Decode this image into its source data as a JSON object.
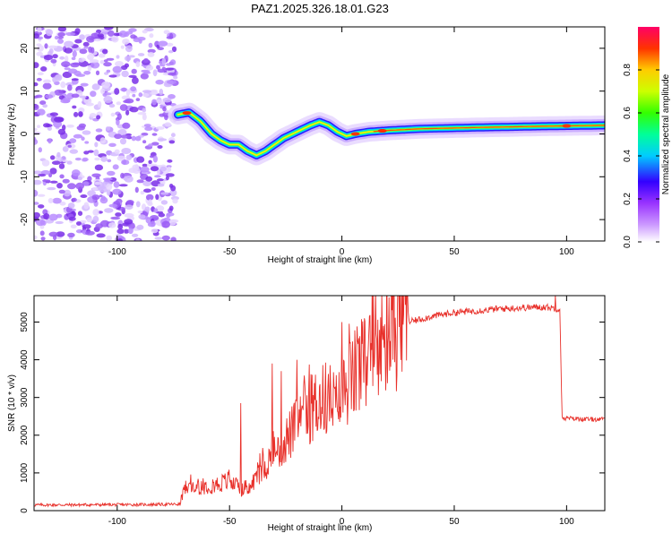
{
  "page": {
    "title": "PAZ1.2025.326.18.01.G23"
  },
  "chart_data": [
    {
      "type": "heatmap",
      "name": "spectrogram",
      "xlabel": "Height of straight line (km)",
      "ylabel": "Frequency (Hz)",
      "xlim": [
        -137,
        117
      ],
      "ylim": [
        -25,
        25
      ],
      "xticks": [
        -100,
        -50,
        0,
        50,
        100
      ],
      "yticks": [
        -20,
        -10,
        0,
        10,
        20
      ],
      "noise_region": {
        "x_range": [
          -137,
          -74
        ],
        "y_range": [
          -25,
          25
        ]
      },
      "frequency_trace": {
        "x": [
          -73,
          -68,
          -63,
          -58,
          -54,
          -50,
          -46,
          -42,
          -38,
          -34,
          -30,
          -26,
          -22,
          -18,
          -14,
          -10,
          -6,
          -2,
          2,
          6,
          12,
          20,
          35,
          60,
          90,
          117
        ],
        "y": [
          4.5,
          5,
          3,
          0,
          -1.5,
          -2.5,
          -2.5,
          -4,
          -5,
          -4,
          -2.5,
          -1,
          0,
          1,
          2,
          2.8,
          2,
          0.5,
          -0.5,
          0,
          0.5,
          0.8,
          1.2,
          1.5,
          1.8,
          2
        ]
      },
      "colorbar": {
        "label": "Normalized spectral amplitude",
        "range": [
          0,
          1
        ],
        "ticks": [
          "0.0",
          "0.2",
          "0.4",
          "0.6",
          "0.8"
        ],
        "tick_values": [
          0,
          0.2,
          0.4,
          0.6,
          0.8
        ],
        "colors": [
          "#ffffff",
          "#cc99ff",
          "#9933ff",
          "#3300ff",
          "#00ccff",
          "#00ff99",
          "#33ff00",
          "#ccff00",
          "#ffcc00",
          "#ff3300",
          "#ff0066"
        ]
      }
    },
    {
      "type": "line",
      "name": "snr",
      "xlabel": "Height of straight line (km)",
      "ylabel": "SNR (10 * v/v)",
      "xlim": [
        -137,
        117
      ],
      "ylim": [
        0,
        5700
      ],
      "xticks": [
        -100,
        -50,
        0,
        50,
        100
      ],
      "yticks": [
        0,
        1000,
        2000,
        3000,
        4000,
        5000
      ],
      "color": "#e8302a",
      "envelope": {
        "x": [
          -137,
          -90,
          -72,
          -70,
          -62,
          -55,
          -50,
          -46,
          -42,
          -38,
          -34,
          -30,
          -26,
          -22,
          -18,
          -14,
          -10,
          -6,
          -2,
          2,
          6,
          10,
          14,
          18,
          22,
          26,
          30,
          40,
          50,
          60,
          70,
          80,
          90,
          97,
          98,
          100,
          110,
          117
        ],
        "y": [
          150,
          160,
          170,
          600,
          650,
          700,
          800,
          600,
          500,
          900,
          1200,
          1500,
          1800,
          2100,
          2400,
          2700,
          2900,
          3000,
          2700,
          3300,
          3600,
          3900,
          4100,
          4400,
          4700,
          4900,
          5000,
          5150,
          5250,
          5300,
          5350,
          5380,
          5400,
          5350,
          2450,
          2450,
          2420,
          2420
        ]
      },
      "spikes": [
        {
          "x": -45,
          "y": 2850
        },
        {
          "x": -31,
          "y": 3900
        },
        {
          "x": -27,
          "y": 3700
        },
        {
          "x": -20,
          "y": 4000
        },
        {
          "x": 0,
          "y": 5000
        },
        {
          "x": 10,
          "y": 5100
        },
        {
          "x": 95,
          "y": 5700
        }
      ]
    }
  ]
}
